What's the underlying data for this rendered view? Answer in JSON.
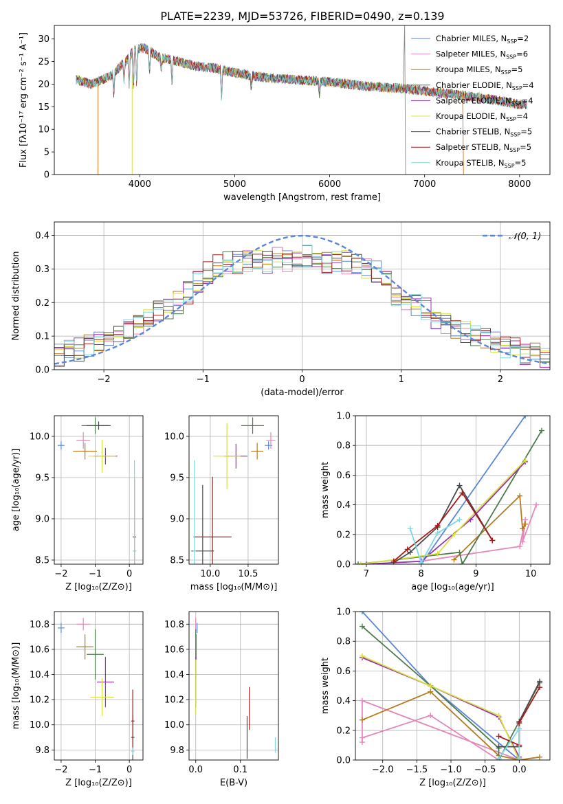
{
  "title": "PLATE=2239, MJD=53726, FIBERID=0490, z=0.139",
  "legend": [
    {
      "label": "Chabrier MILES, N",
      "sub": "SSP",
      "eq": "=2",
      "color": "#5b86d6"
    },
    {
      "label": "Salpeter MILES, N",
      "sub": "SSP",
      "eq": "=6",
      "color": "#e387b9"
    },
    {
      "label": "Kroupa MILES, N",
      "sub": "SSP",
      "eq": "=5",
      "color": "#b57b1e"
    },
    {
      "label": "Chabrier ELODIE, N",
      "sub": "SSP",
      "eq": "=4",
      "color": "#4e7a4e"
    },
    {
      "label": "Salpeter ELODIE, N",
      "sub": "SSP",
      "eq": "=4",
      "color": "#9a2fb8"
    },
    {
      "label": "Kroupa ELODIE, N",
      "sub": "SSP",
      "eq": "=4",
      "color": "#d7e23a"
    },
    {
      "label": "Chabrier STELIB, N",
      "sub": "SSP",
      "eq": "=5",
      "color": "#4a4a4a"
    },
    {
      "label": "Salpeter STELIB, N",
      "sub": "SSP",
      "eq": "=5",
      "color": "#a81a1a"
    },
    {
      "label": "Kroupa STELIB, N",
      "sub": "SSP",
      "eq": "=5",
      "color": "#7fd8e0"
    }
  ],
  "chart_data": [
    {
      "id": "spectrum",
      "type": "line",
      "xlabel": "wavelength [Angstrom, rest frame]",
      "ylabel": "Flux [fλ10⁻¹⁷ erg cm⁻² s⁻¹ A⁻¹]",
      "xlim": [
        3100,
        8320
      ],
      "ylim": [
        0,
        33
      ],
      "xticks": [
        4000,
        5000,
        6000,
        7000,
        8000
      ],
      "yticks": [
        0,
        5,
        10,
        15,
        20,
        25,
        30
      ],
      "continuum": {
        "x": [
          3330,
          3500,
          3700,
          3850,
          3950,
          4050,
          4200,
          4400,
          4600,
          4800,
          5000,
          5300,
          5600,
          6000,
          6400,
          6800,
          7200,
          7600,
          8000,
          8080
        ],
        "y": [
          21,
          20,
          22,
          25,
          28,
          28,
          26,
          25,
          24,
          23.5,
          22.5,
          21.5,
          21,
          20.5,
          19.5,
          19,
          18,
          17,
          15.5,
          15.5
        ]
      }
    },
    {
      "id": "residuals",
      "type": "step",
      "xlabel": "(data-model)/error",
      "ylabel": "Normed distribution",
      "xlim": [
        -2.5,
        2.5
      ],
      "ylim": [
        0,
        0.44
      ],
      "xticks": [
        -2,
        -1,
        0,
        1,
        2
      ],
      "yticks": [
        0.0,
        0.1,
        0.2,
        0.3,
        0.4
      ],
      "reference_label": "𝒩(0, 1)",
      "reference_color": "#5b86d6",
      "bins_x": [
        -2.5,
        -2.4,
        -2.3,
        -2.2,
        -2.1,
        -2.0,
        -1.9,
        -1.8,
        -1.7,
        -1.6,
        -1.5,
        -1.4,
        -1.3,
        -1.2,
        -1.1,
        -1.0,
        -0.9,
        -0.8,
        -0.7,
        -0.6,
        -0.5,
        -0.4,
        -0.3,
        -0.2,
        -0.1,
        0.0,
        0.1,
        0.2,
        0.3,
        0.4,
        0.5,
        0.6,
        0.7,
        0.8,
        0.9,
        1.0,
        1.1,
        1.2,
        1.3,
        1.4,
        1.5,
        1.6,
        1.7,
        1.8,
        1.9,
        2.0,
        2.1,
        2.2,
        2.3,
        2.4
      ],
      "profile": [
        0.045,
        0.055,
        0.06,
        0.07,
        0.08,
        0.095,
        0.1,
        0.115,
        0.13,
        0.15,
        0.17,
        0.18,
        0.2,
        0.23,
        0.26,
        0.29,
        0.31,
        0.32,
        0.32,
        0.32,
        0.33,
        0.32,
        0.33,
        0.32,
        0.34,
        0.34,
        0.33,
        0.32,
        0.32,
        0.32,
        0.31,
        0.3,
        0.29,
        0.28,
        0.22,
        0.2,
        0.19,
        0.18,
        0.15,
        0.14,
        0.12,
        0.11,
        0.1,
        0.09,
        0.08,
        0.07,
        0.06,
        0.05,
        0.045,
        0.04
      ]
    },
    {
      "id": "age-vs-Z",
      "type": "errorbar",
      "xlabel": "Z [log₁₀(Z/Z⊙)]",
      "ylabel": "age  [log₁₀(age/yr)]",
      "xlim": [
        -2.2,
        0.4
      ],
      "ylim": [
        8.45,
        10.25
      ],
      "xticks": [
        -2,
        -1,
        0
      ],
      "yticks": [
        8.5,
        9.0,
        9.5,
        10.0
      ],
      "points": [
        {
          "x": -2.0,
          "xerr": 0.1,
          "y": 9.89,
          "yerr": 0.05,
          "color": "#5b86d6"
        },
        {
          "x": -1.35,
          "xerr": 0.2,
          "y": 9.95,
          "yerr": 0.1,
          "color": "#e387b9"
        },
        {
          "x": -1.3,
          "xerr": 0.35,
          "y": 9.82,
          "yerr": 0.1,
          "color": "#b57b1e"
        },
        {
          "x": -1.0,
          "xerr": 0.4,
          "y": 10.13,
          "yerr": 0.1,
          "color": "#4e7a4e"
        },
        {
          "x": -0.7,
          "xerr": 0.35,
          "y": 9.76,
          "yerr": 0.1,
          "color": "#9a2fb8"
        },
        {
          "x": -0.8,
          "xerr": 0.4,
          "y": 9.76,
          "yerr": 0.2,
          "color": "#d7e23a"
        },
        {
          "x": -0.9,
          "xerr": 0.35,
          "y": 10.13,
          "yerr": 0.05,
          "color": "#4a4a4a"
        },
        {
          "x": 0.15,
          "xerr": 0.05,
          "y": 8.78,
          "yerr": 0.7,
          "color": "#a81a1a"
        },
        {
          "x": 0.15,
          "xerr": 0.05,
          "y": 8.61,
          "yerr": 1.1,
          "color": "#7fd8e0"
        }
      ]
    },
    {
      "id": "age-vs-mass",
      "type": "errorbar",
      "xlabel": "mass [log₁₀(M/M⊙)]",
      "ylabel": "",
      "xlim": [
        9.72,
        10.9
      ],
      "ylim": [
        8.45,
        10.25
      ],
      "xticks": [
        10.0,
        10.5
      ],
      "yticks": [
        8.5,
        9.0,
        9.5,
        10.0
      ],
      "points": [
        {
          "x": 10.77,
          "xerr": 0.05,
          "y": 9.89,
          "yerr": 0.05,
          "color": "#5b86d6"
        },
        {
          "x": 10.8,
          "xerr": 0.06,
          "y": 9.95,
          "yerr": 0.1,
          "color": "#e387b9"
        },
        {
          "x": 10.62,
          "xerr": 0.08,
          "y": 9.82,
          "yerr": 0.1,
          "color": "#b57b1e"
        },
        {
          "x": 10.56,
          "xerr": 0.15,
          "y": 10.13,
          "yerr": 0.1,
          "color": "#4e7a4e"
        },
        {
          "x": 10.34,
          "xerr": 0.15,
          "y": 9.76,
          "yerr": 0.15,
          "color": "#9a2fb8"
        },
        {
          "x": 10.22,
          "xerr": 0.18,
          "y": 9.76,
          "yerr": 0.4,
          "color": "#d7e23a"
        },
        {
          "x": 9.9,
          "xerr": 0.15,
          "y": 8.61,
          "yerr": 0.8,
          "color": "#4a4a4a"
        },
        {
          "x": 10.03,
          "xerr": 0.25,
          "y": 8.78,
          "yerr": 0.73,
          "color": "#a81a1a"
        },
        {
          "x": 9.79,
          "xerr": 0.02,
          "y": 8.61,
          "yerr": 1.1,
          "color": "#7fd8e0"
        }
      ]
    },
    {
      "id": "weight-vs-age",
      "type": "line",
      "xlabel": "age  [log₁₀(age/yr)]",
      "ylabel": "mass weight",
      "xlim": [
        6.8,
        10.35
      ],
      "ylim": [
        0,
        1.0
      ],
      "xticks": [
        7,
        8,
        9,
        10
      ],
      "yticks": [
        0.0,
        0.2,
        0.4,
        0.6,
        0.8,
        1.0
      ],
      "series": [
        {
          "color": "#5b86d6",
          "x": [
            8.0,
            9.9
          ],
          "y": [
            0.0,
            1.0
          ]
        },
        {
          "color": "#e387b9",
          "x": [
            8.0,
            9.8,
            9.9,
            9.85,
            10.1
          ],
          "y": [
            0.02,
            0.12,
            0.3,
            0.15,
            0.4
          ]
        },
        {
          "color": "#b57b1e",
          "x": [
            8.6,
            9.8,
            9.85,
            9.9
          ],
          "y": [
            0.03,
            0.46,
            0.24,
            0.27
          ]
        },
        {
          "color": "#4e7a4e",
          "x": [
            6.85,
            8.7,
            8.75,
            10.2
          ],
          "y": [
            0.0,
            0.08,
            0.0,
            0.9
          ]
        },
        {
          "color": "#9a2fb8",
          "x": [
            7.0,
            8.0,
            8.9,
            9.9
          ],
          "y": [
            0.0,
            0.02,
            0.3,
            0.69
          ]
        },
        {
          "color": "#d7e23a",
          "x": [
            6.9,
            8.3,
            8.6,
            9.9
          ],
          "y": [
            0.0,
            0.07,
            0.2,
            0.7
          ]
        },
        {
          "color": "#4a4a4a",
          "x": [
            7.5,
            7.8,
            8.3,
            8.7,
            9.3
          ],
          "y": [
            0.01,
            0.08,
            0.25,
            0.53,
            0.16
          ]
        },
        {
          "color": "#a81a1a",
          "x": [
            7.5,
            7.75,
            8.3,
            8.75,
            9.3
          ],
          "y": [
            0.02,
            0.1,
            0.26,
            0.48,
            0.16
          ]
        },
        {
          "color": "#7fd8e0",
          "x": [
            7.8,
            8.0,
            8.3,
            8.7
          ],
          "y": [
            0.24,
            0.01,
            0.21,
            0.3
          ]
        }
      ]
    },
    {
      "id": "mass-vs-Z",
      "type": "errorbar",
      "xlabel": "Z [log₁₀(Z/Z⊙)]",
      "ylabel": "mass [log₁₀(M/M⊙)]",
      "xlim": [
        -2.2,
        0.4
      ],
      "ylim": [
        9.72,
        10.9
      ],
      "xticks": [
        -2,
        -1,
        0
      ],
      "yticks": [
        9.8,
        10.0,
        10.2,
        10.4,
        10.6,
        10.8
      ],
      "points": [
        {
          "x": -2.0,
          "xerr": 0.1,
          "y": 10.77,
          "yerr": 0.04,
          "color": "#5b86d6"
        },
        {
          "x": -1.35,
          "xerr": 0.2,
          "y": 10.8,
          "yerr": 0.05,
          "color": "#e387b9"
        },
        {
          "x": -1.3,
          "xerr": 0.25,
          "y": 10.62,
          "yerr": 0.1,
          "color": "#b57b1e"
        },
        {
          "x": -1.0,
          "xerr": 0.25,
          "y": 10.56,
          "yerr": 0.2,
          "color": "#4e7a4e"
        },
        {
          "x": -0.7,
          "xerr": 0.25,
          "y": 10.34,
          "yerr": 0.2,
          "color": "#9a2fb8"
        },
        {
          "x": -0.8,
          "xerr": 0.35,
          "y": 10.22,
          "yerr": 0.15,
          "color": "#d7e23a"
        },
        {
          "x": 0.1,
          "xerr": 0.05,
          "y": 9.9,
          "yerr": 0.18,
          "color": "#4a4a4a"
        },
        {
          "x": 0.1,
          "xerr": 0.05,
          "y": 10.03,
          "yerr": 0.25,
          "color": "#a81a1a"
        },
        {
          "x": 0.1,
          "xerr": 0.05,
          "y": 9.79,
          "yerr": 0.03,
          "color": "#7fd8e0"
        }
      ]
    },
    {
      "id": "mass-vs-EBV",
      "type": "errorbar",
      "xlabel": "E(B-V)",
      "ylabel": "",
      "xlim": [
        -0.015,
        0.185
      ],
      "ylim": [
        9.72,
        10.9
      ],
      "xticks": [
        0.0,
        0.1
      ],
      "yticks": [
        9.8,
        10.0,
        10.2,
        10.4,
        10.6,
        10.8
      ],
      "points": [
        {
          "x": 0.003,
          "xerr": 0,
          "y": 10.77,
          "yerr": 0.04,
          "color": "#5b86d6"
        },
        {
          "x": 0.0,
          "xerr": 0,
          "y": 10.8,
          "yerr": 0.05,
          "color": "#e387b9"
        },
        {
          "x": 0.001,
          "xerr": 0,
          "y": 10.62,
          "yerr": 0.1,
          "color": "#b57b1e"
        },
        {
          "x": 0.0,
          "xerr": 0,
          "y": 10.56,
          "yerr": 0.2,
          "color": "#4e7a4e"
        },
        {
          "x": 0.0,
          "xerr": 0,
          "y": 10.34,
          "yerr": 0.2,
          "color": "#9a2fb8"
        },
        {
          "x": 0.0,
          "xerr": 0,
          "y": 10.3,
          "yerr": 0.22,
          "color": "#d7e23a"
        },
        {
          "x": 0.115,
          "xerr": 0,
          "y": 9.9,
          "yerr": 0.17,
          "color": "#4a4a4a"
        },
        {
          "x": 0.12,
          "xerr": 0,
          "y": 10.13,
          "yerr": 0.17,
          "color": "#a81a1a"
        },
        {
          "x": 0.178,
          "xerr": 0,
          "y": 9.84,
          "yerr": 0.06,
          "color": "#7fd8e0"
        }
      ]
    },
    {
      "id": "weight-vs-Z",
      "type": "line",
      "xlabel": "Z [log₁₀(Z/Z⊙)]",
      "ylabel": "mass weight",
      "xlim": [
        -2.4,
        0.45
      ],
      "ylim": [
        0,
        1.0
      ],
      "xticks": [
        -2.0,
        -1.5,
        -1.0,
        -0.5,
        0.0
      ],
      "yticks": [
        0.0,
        0.2,
        0.4,
        0.6,
        0.8,
        1.0
      ],
      "series": [
        {
          "color": "#5b86d6",
          "x": [
            -2.3,
            -1.3,
            0.0
          ],
          "y": [
            1.0,
            0.5,
            0.0
          ]
        },
        {
          "color": "#e387b9",
          "x": [
            -2.3,
            -1.3,
            -0.3,
            0.0,
            -2.3,
            -2.3
          ],
          "y": [
            0.15,
            0.3,
            0.0,
            0.0,
            0.4,
            0.12
          ]
        },
        {
          "color": "#b57b1e",
          "x": [
            -2.3,
            -1.3,
            -0.3,
            0.0,
            0.3
          ],
          "y": [
            0.27,
            0.46,
            0.03,
            0.0,
            0.02
          ]
        },
        {
          "color": "#4e7a4e",
          "x": [
            -2.3,
            -1.3,
            -0.3,
            -0.3,
            0.3
          ],
          "y": [
            0.9,
            0.5,
            0.08,
            0.0,
            0.52
          ]
        },
        {
          "color": "#9a2fb8",
          "x": [
            -2.3,
            -1.3,
            -0.3,
            0.0
          ],
          "y": [
            0.69,
            0.5,
            0.29,
            0.02
          ]
        },
        {
          "color": "#d7e23a",
          "x": [
            -2.3,
            -1.3,
            -0.3,
            0.0
          ],
          "y": [
            0.7,
            0.5,
            0.3,
            0.0
          ]
        },
        {
          "color": "#4a4a4a",
          "x": [
            -0.3,
            0.0,
            0.0,
            0.3
          ],
          "y": [
            0.09,
            0.09,
            0.26,
            0.53
          ]
        },
        {
          "color": "#a81a1a",
          "x": [
            -0.3,
            0.0,
            0.0,
            0.3
          ],
          "y": [
            0.16,
            0.1,
            0.25,
            0.49
          ]
        },
        {
          "color": "#7fd8e0",
          "x": [
            -0.3,
            0.0,
            0.0
          ],
          "y": [
            0.01,
            0.21,
            0.01
          ]
        }
      ]
    }
  ]
}
